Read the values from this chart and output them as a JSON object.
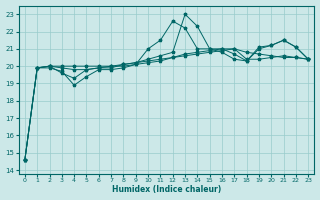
{
  "xlabel": "Humidex (Indice chaleur)",
  "background_color": "#cce8e8",
  "grid_color": "#99cccc",
  "line_color": "#006666",
  "xlim": [
    -0.5,
    23.5
  ],
  "ylim": [
    13.8,
    23.5
  ],
  "yticks": [
    14,
    15,
    16,
    17,
    18,
    19,
    20,
    21,
    22,
    23
  ],
  "xticks": [
    0,
    1,
    2,
    3,
    4,
    5,
    6,
    7,
    8,
    9,
    10,
    11,
    12,
    13,
    14,
    15,
    16,
    17,
    18,
    19,
    20,
    21,
    22,
    23
  ],
  "series": [
    [
      14.6,
      19.9,
      19.9,
      19.7,
      18.9,
      19.4,
      19.8,
      19.8,
      19.9,
      20.1,
      21.0,
      21.5,
      22.6,
      22.2,
      21.0,
      21.0,
      21.0,
      20.7,
      20.3,
      21.0,
      21.2,
      21.5,
      21.1,
      20.4
    ],
    [
      14.6,
      19.9,
      20.0,
      19.6,
      19.3,
      19.8,
      19.9,
      19.9,
      20.1,
      20.2,
      20.3,
      20.4,
      20.5,
      20.6,
      20.7,
      20.8,
      20.9,
      21.0,
      20.4,
      20.4,
      20.5,
      20.6,
      20.5,
      20.4
    ],
    [
      14.6,
      19.9,
      20.0,
      20.0,
      20.0,
      20.0,
      20.0,
      20.0,
      20.0,
      20.1,
      20.2,
      20.3,
      20.5,
      20.7,
      20.8,
      20.9,
      21.0,
      21.0,
      20.8,
      20.7,
      20.6,
      20.5,
      20.5,
      20.4
    ],
    [
      14.6,
      19.9,
      20.0,
      19.9,
      19.8,
      19.8,
      19.9,
      20.0,
      20.1,
      20.2,
      20.4,
      20.6,
      20.8,
      23.0,
      22.3,
      21.0,
      20.8,
      20.4,
      20.3,
      21.1,
      21.2,
      21.5,
      21.1,
      20.4
    ]
  ]
}
